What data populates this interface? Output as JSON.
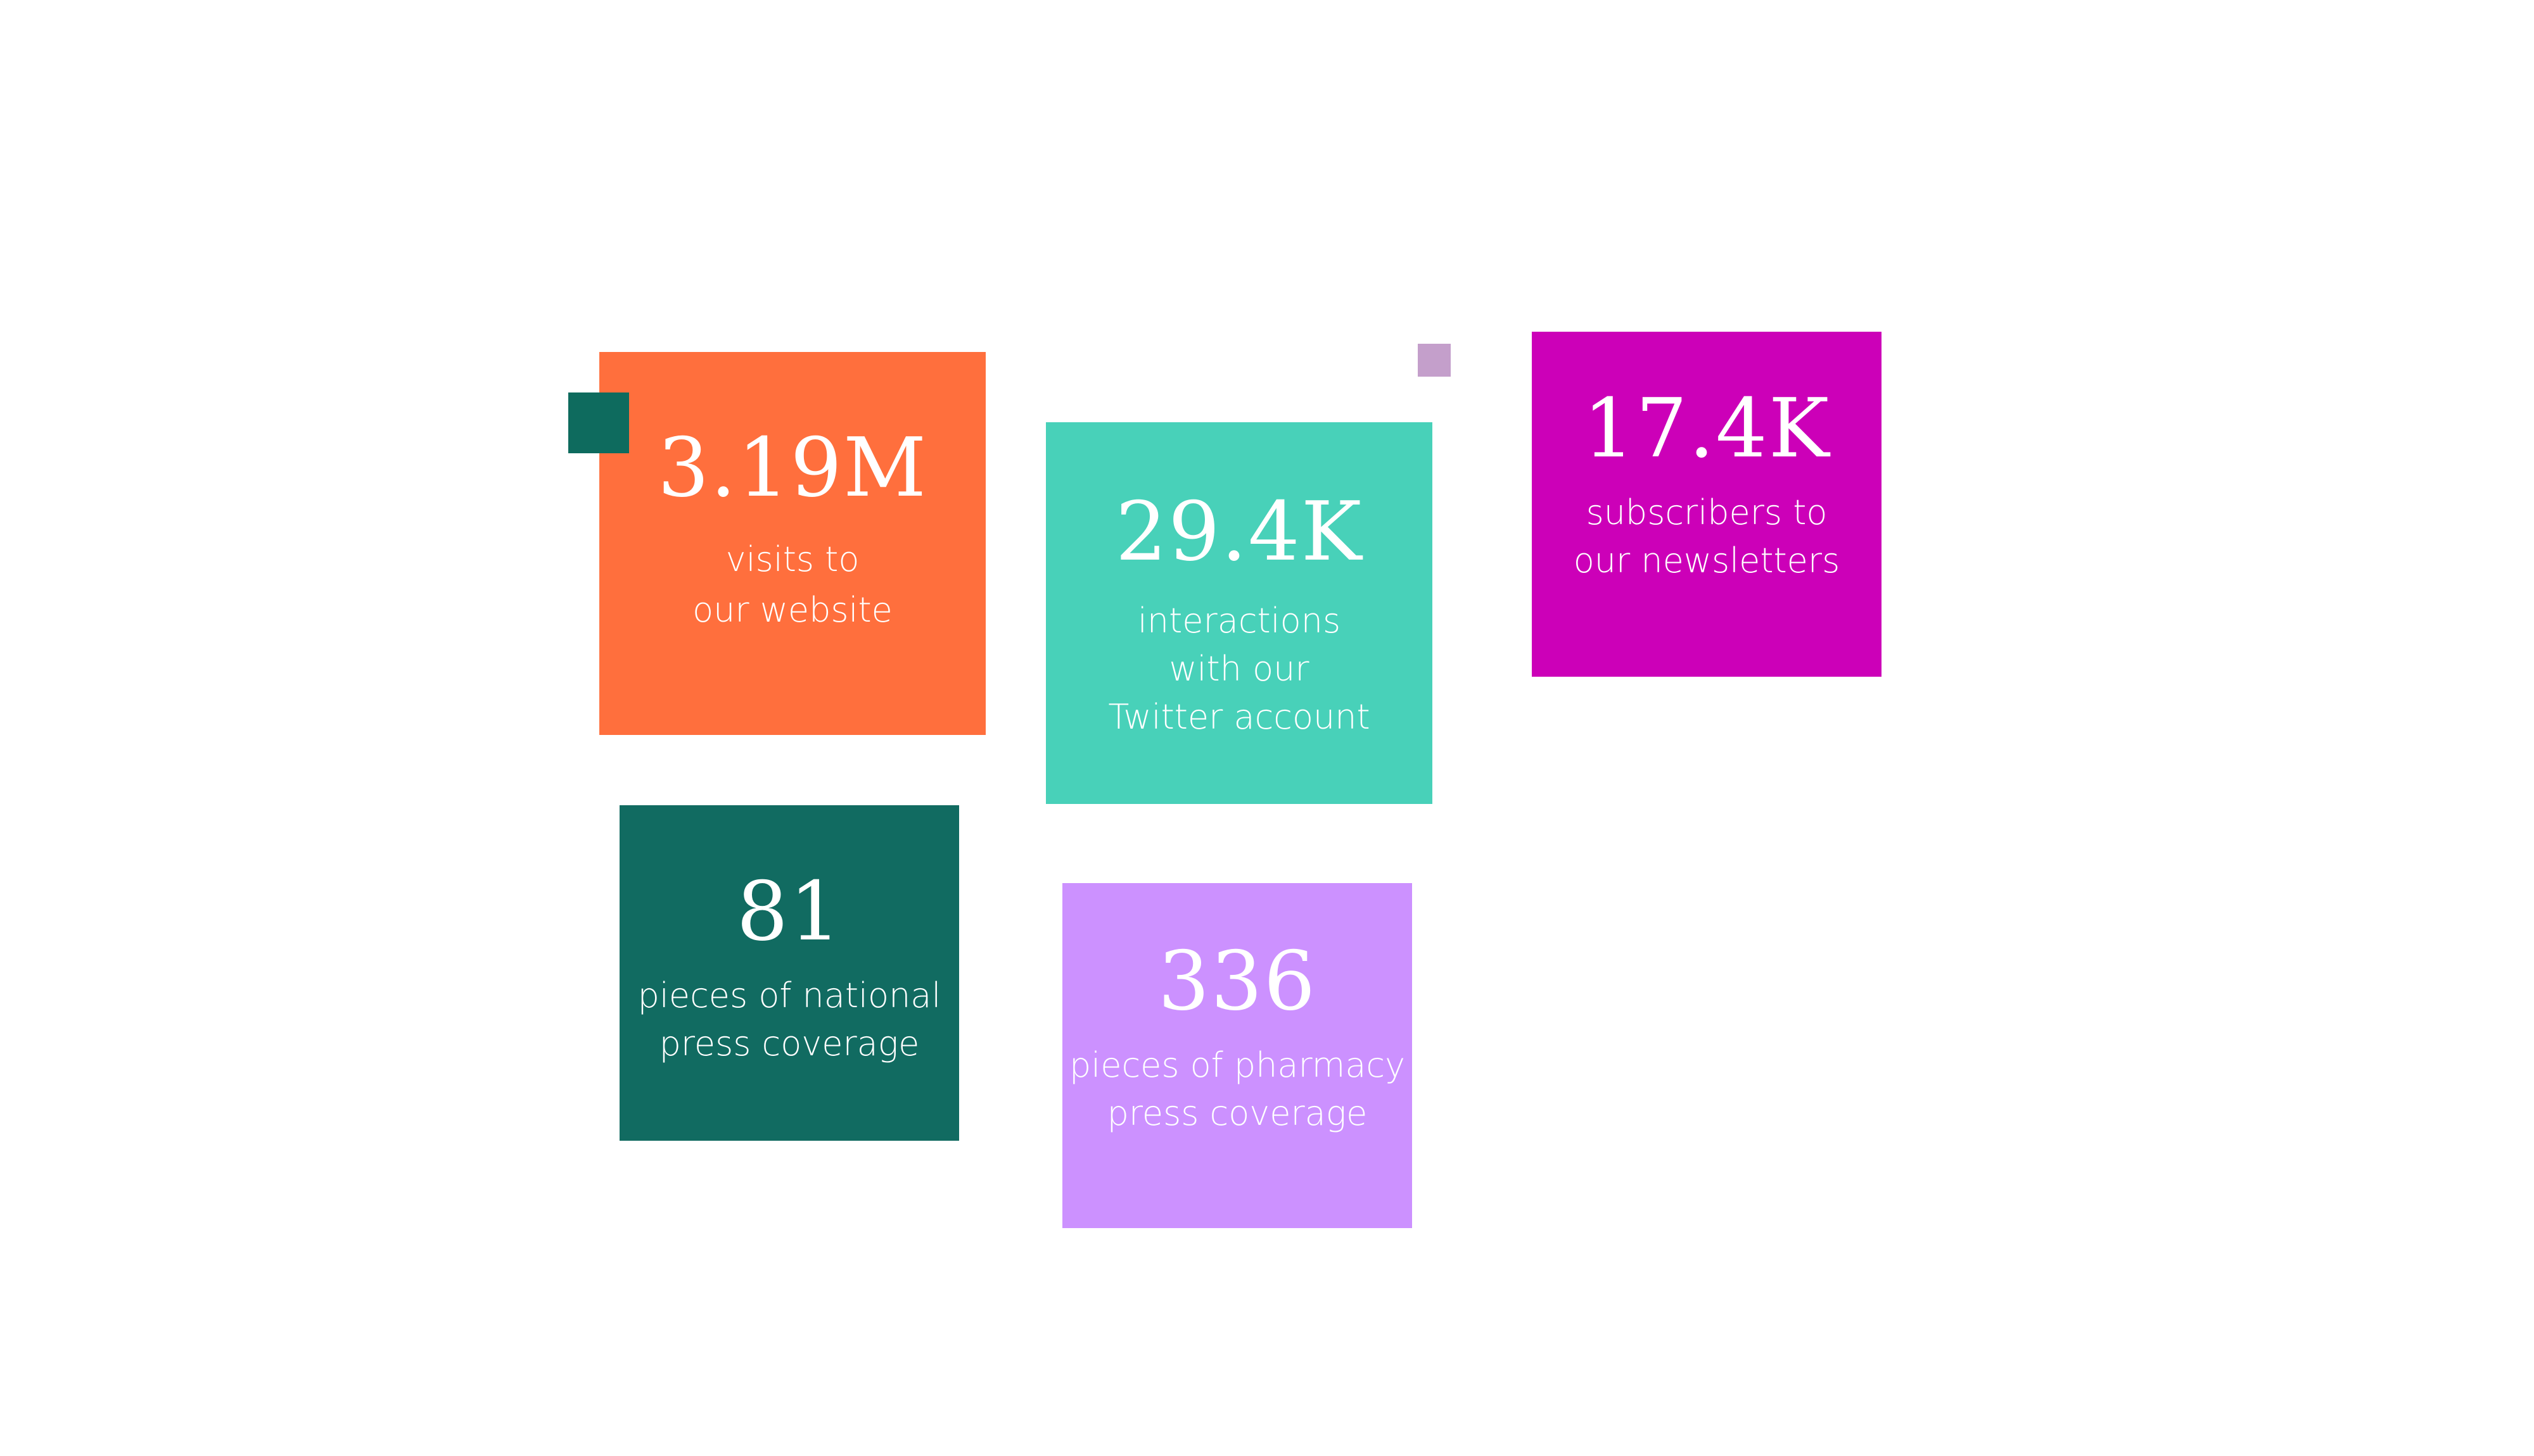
{
  "colors": {
    "orange": "#FF6F3D",
    "teal": "#48D1B9",
    "magenta": "#CC00B8",
    "dark_green": "#116B61",
    "lilac": "#CC91FF",
    "accent_dark_square": "#0E6B5E",
    "accent_lilac_square": "#C49FCB"
  },
  "stats": [
    {
      "value": "3.19M",
      "label": "visits to\nour website"
    },
    {
      "value": "29.4K",
      "label": "interactions\nwith our\nTwitter account"
    },
    {
      "value": "17.4K",
      "label": "subscribers to\nour newsletters"
    },
    {
      "value": "81",
      "label": "pieces of national\npress coverage"
    },
    {
      "value": "336",
      "label": "pieces of pharmacy\npress coverage"
    }
  ]
}
